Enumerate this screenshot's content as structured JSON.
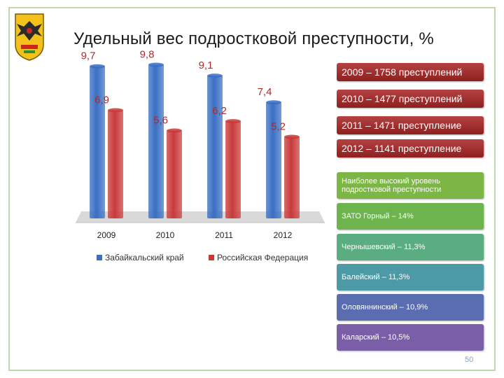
{
  "title": "Удельный вес подростковой преступности, %",
  "chart_data": {
    "type": "bar",
    "title": "Удельный вес подростковой преступности, %",
    "categories": [
      "2009",
      "2010",
      "2011",
      "2012"
    ],
    "series": [
      {
        "name": "Забайкальский край",
        "values": [
          9.7,
          9.8,
          9.1,
          7.4
        ],
        "labels": [
          "9,7",
          "9,8",
          "9,1",
          "7,4"
        ],
        "color": "#3a6fc4"
      },
      {
        "name": "Российская Федерация",
        "values": [
          6.9,
          5.6,
          6.2,
          5.2
        ],
        "labels": [
          "6,9",
          "5,6",
          "6,2",
          "5,2"
        ],
        "color": "#c93a3a"
      }
    ],
    "ylim": [
      0,
      10
    ],
    "legend": "bottom",
    "grid": false,
    "label_color": "#b02a2a"
  },
  "crime_counts": [
    {
      "text": "2009 – 1758 преступлений"
    },
    {
      "text": "2010 – 1477 преступлений"
    },
    {
      "text": "2011 – 1471 преступление"
    },
    {
      "text": "2012 – 1141 преступление"
    }
  ],
  "districts": [
    {
      "text": "Наиболее высокий уровень подростковой преступности",
      "color": "#7cb746"
    },
    {
      "text": "ЗАТО Горный – 14%",
      "color": "#6db34e"
    },
    {
      "text": "Чернышевский – 11,3%",
      "color": "#59ad80"
    },
    {
      "text": "Балейский – 11,3%",
      "color": "#4b9aa6"
    },
    {
      "text": "Оловяннинский – 10,9%",
      "color": "#5a6db0"
    },
    {
      "text": "Каларский – 10,5%",
      "color": "#7a5fa8"
    }
  ],
  "page_number": "50",
  "icons": {
    "emblem": "zabaikalsky-coat-of-arms-icon"
  }
}
